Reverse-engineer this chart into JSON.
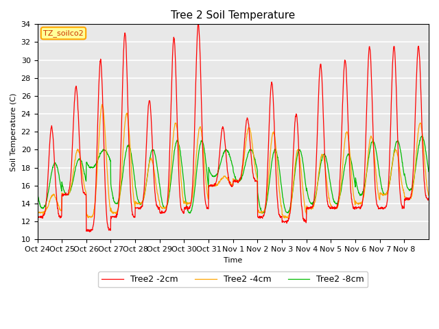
{
  "title": "Tree 2 Soil Temperature",
  "xlabel": "Time",
  "ylabel": "Soil Temperature (C)",
  "ylim": [
    10,
    34
  ],
  "yticks": [
    10,
    12,
    14,
    16,
    18,
    20,
    22,
    24,
    26,
    28,
    30,
    32,
    34
  ],
  "line_colors": {
    "2cm": "#FF0000",
    "4cm": "#FFA500",
    "8cm": "#00BB00"
  },
  "legend_labels": [
    "Tree2 -2cm",
    "Tree2 -4cm",
    "Tree2 -8cm"
  ],
  "x_tick_labels": [
    "Oct 24",
    "Oct 25",
    "Oct 26",
    "Oct 27",
    "Oct 28",
    "Oct 29",
    "Oct 30",
    "Oct 31",
    "Nov 1",
    "Nov 2",
    "Nov 3",
    "Nov 4",
    "Nov 5",
    "Nov 6",
    "Nov 7",
    "Nov 8"
  ],
  "annotation_text": "TZ_soilco2",
  "annotation_bg": "#FFFF99",
  "annotation_border": "#FFA500",
  "plot_bg_color": "#E8E8E8",
  "title_fontsize": 11,
  "axis_fontsize": 8,
  "legend_fontsize": 9
}
